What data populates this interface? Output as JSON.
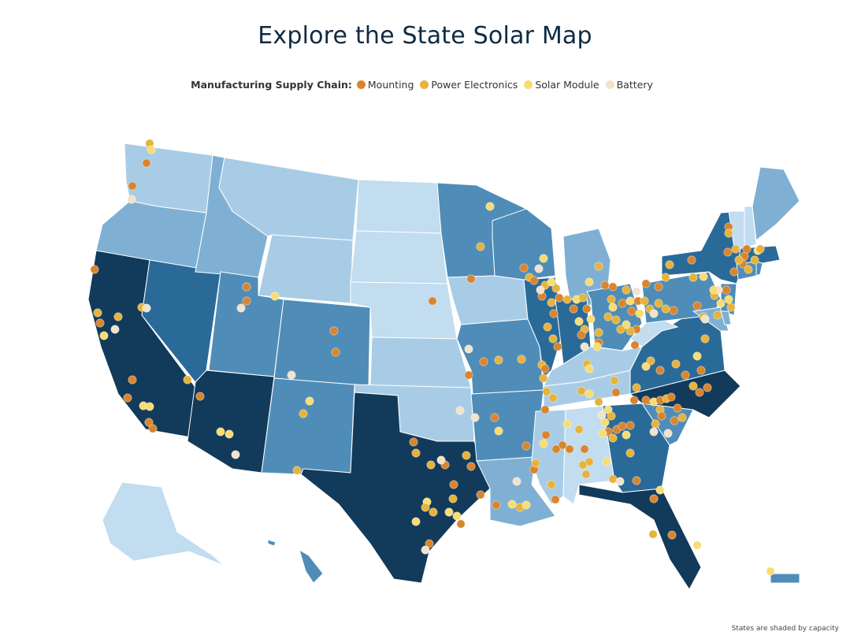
{
  "title": "Explore the State Solar Map",
  "legend": {
    "title": "Manufacturing Supply Chain:",
    "items": [
      {
        "label": "Mounting",
        "color": "#d9852e"
      },
      {
        "label": "Power Electronics",
        "color": "#e6b33b"
      },
      {
        "label": "Solar Module",
        "color": "#f7dd72"
      },
      {
        "label": "Battery",
        "color": "#f1e3cc"
      }
    ]
  },
  "capacity_colors": {
    "1": "#c2dcf0",
    "2": "#a9cce6",
    "3": "#7fb0d4",
    "4": "#4f8db8",
    "5": "#2a6a99",
    "6": "#123a5a"
  },
  "footnote": "States are shaded by capacity"
}
